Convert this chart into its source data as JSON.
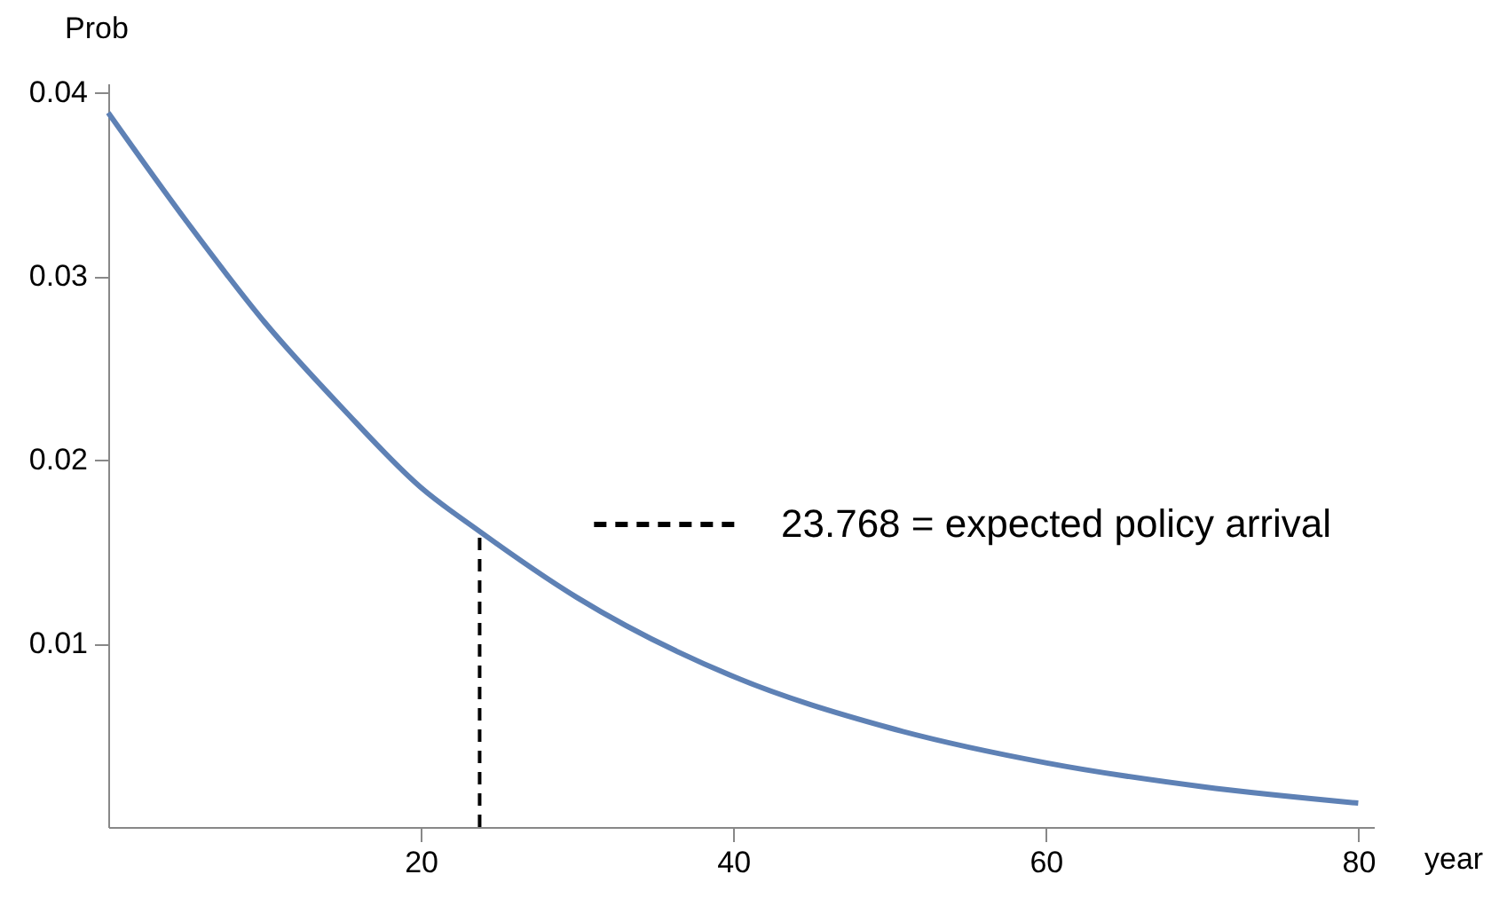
{
  "chart_data": {
    "type": "line",
    "xlabel": "year",
    "ylabel": "Prob",
    "xlim": [
      0,
      81
    ],
    "ylim": [
      0,
      0.0405
    ],
    "xticks": [
      20,
      40,
      60,
      80
    ],
    "yticks": [
      0.01,
      0.02,
      0.03,
      0.04
    ],
    "legend": "right",
    "series": [
      {
        "color": "#5e81b5",
        "x": [
          0,
          5,
          10,
          15,
          20,
          23.768,
          30,
          40,
          50,
          60,
          70,
          80
        ],
        "values": [
          0.0389,
          0.033,
          0.0275,
          0.0228,
          0.0185,
          0.0161,
          0.0125,
          0.0082,
          0.0054,
          0.0035,
          0.0022,
          0.0013
        ]
      },
      {
        "name": "23.768 = expected policy arrival",
        "color": "#000000",
        "line_style": "dashed",
        "x": [
          23.768,
          23.768
        ],
        "values": [
          0,
          0.0161
        ]
      }
    ]
  }
}
